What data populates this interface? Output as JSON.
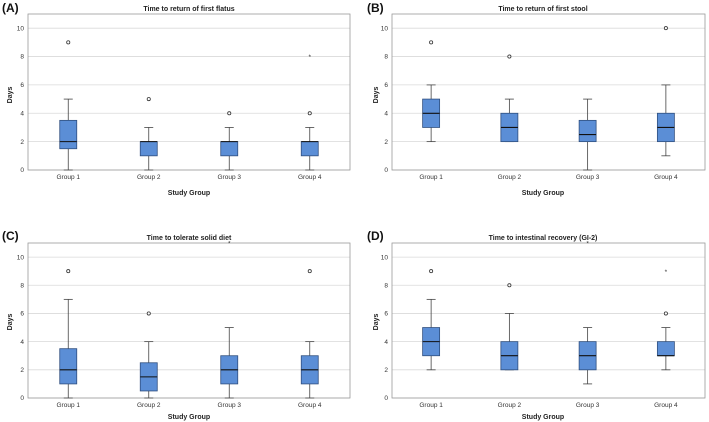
{
  "chart_data": [
    {
      "type": "boxplot",
      "panel_label": "(A)",
      "title": "Time to return of first flatus",
      "xlabel": "Study Group",
      "ylabel": "Days",
      "ylim": [
        0,
        11
      ],
      "yticks": [
        0,
        2,
        4,
        6,
        8,
        10
      ],
      "categories": [
        "Group 1",
        "Group 2",
        "Group 3",
        "Group 4"
      ],
      "box_color": "#5b8ed6",
      "series": [
        {
          "name": "Group 1",
          "min": 0,
          "q1": 1.5,
          "median": 2,
          "q3": 3.5,
          "max": 5,
          "outliers": [
            9
          ],
          "extremes": []
        },
        {
          "name": "Group 2",
          "min": 0,
          "q1": 1,
          "median": 2,
          "q3": 2,
          "max": 3,
          "outliers": [
            5
          ],
          "extremes": []
        },
        {
          "name": "Group 3",
          "min": 0,
          "q1": 1,
          "median": 2,
          "q3": 2,
          "max": 3,
          "outliers": [
            4
          ],
          "extremes": []
        },
        {
          "name": "Group 4",
          "min": 0,
          "q1": 1,
          "median": 2,
          "q3": 2,
          "max": 3,
          "outliers": [
            4
          ],
          "extremes": [
            8
          ]
        }
      ]
    },
    {
      "type": "boxplot",
      "panel_label": "(B)",
      "title": "Time to return of first stool",
      "xlabel": "Study Group",
      "ylabel": "Days",
      "ylim": [
        0,
        11
      ],
      "yticks": [
        0,
        2,
        4,
        6,
        8,
        10
      ],
      "categories": [
        "Group 1",
        "Group 2",
        "Group 3",
        "Group 4"
      ],
      "box_color": "#5b8ed6",
      "series": [
        {
          "name": "Group 1",
          "min": 2,
          "q1": 3,
          "median": 4,
          "q3": 5,
          "max": 6,
          "outliers": [
            9
          ],
          "extremes": []
        },
        {
          "name": "Group 2",
          "min": 2,
          "q1": 2,
          "median": 3,
          "q3": 4,
          "max": 5,
          "outliers": [
            8
          ],
          "extremes": []
        },
        {
          "name": "Group 3",
          "min": 0,
          "q1": 2,
          "median": 2.5,
          "q3": 3.5,
          "max": 5,
          "outliers": [],
          "extremes": []
        },
        {
          "name": "Group 4",
          "min": 1,
          "q1": 2,
          "median": 3,
          "q3": 4,
          "max": 6,
          "outliers": [
            10
          ],
          "extremes": []
        }
      ]
    },
    {
      "type": "boxplot",
      "panel_label": "(C)",
      "title": "Time to tolerate solid diet",
      "xlabel": "Study Group",
      "ylabel": "Days",
      "ylim": [
        0,
        11
      ],
      "yticks": [
        0,
        2,
        4,
        6,
        8,
        10
      ],
      "categories": [
        "Group 1",
        "Group 2",
        "Group 3",
        "Group 4"
      ],
      "box_color": "#5b8ed6",
      "series": [
        {
          "name": "Group 1",
          "min": 0,
          "q1": 1,
          "median": 2,
          "q3": 3.5,
          "max": 7,
          "outliers": [
            9
          ],
          "extremes": []
        },
        {
          "name": "Group 2",
          "min": 0,
          "q1": 0.5,
          "median": 1.5,
          "q3": 2.5,
          "max": 4,
          "outliers": [
            6
          ],
          "extremes": []
        },
        {
          "name": "Group 3",
          "min": 0,
          "q1": 1,
          "median": 2,
          "q3": 3,
          "max": 5,
          "outliers": [],
          "extremes": [
            11
          ]
        },
        {
          "name": "Group 4",
          "min": 0,
          "q1": 1,
          "median": 2,
          "q3": 3,
          "max": 4,
          "outliers": [
            9
          ],
          "extremes": []
        }
      ]
    },
    {
      "type": "boxplot",
      "panel_label": "(D)",
      "title": "Time to intestinal recovery (GI-2)",
      "xlabel": "Study Group",
      "ylabel": "Days",
      "ylim": [
        0,
        11
      ],
      "yticks": [
        0,
        2,
        4,
        6,
        8,
        10
      ],
      "categories": [
        "Group 1",
        "Group 2",
        "Group 3",
        "Group 4"
      ],
      "box_color": "#5b8ed6",
      "series": [
        {
          "name": "Group 1",
          "min": 2,
          "q1": 3,
          "median": 4,
          "q3": 5,
          "max": 7,
          "outliers": [
            9
          ],
          "extremes": []
        },
        {
          "name": "Group 2",
          "min": 2,
          "q1": 2,
          "median": 3,
          "q3": 4,
          "max": 6,
          "outliers": [
            8
          ],
          "extremes": []
        },
        {
          "name": "Group 3",
          "min": 1,
          "q1": 2,
          "median": 3,
          "q3": 4,
          "max": 5,
          "outliers": [],
          "extremes": [
            11
          ]
        },
        {
          "name": "Group 4",
          "min": 2,
          "q1": 3,
          "median": 3,
          "q3": 4,
          "max": 5,
          "outliers": [
            6
          ],
          "extremes": [
            9
          ]
        }
      ]
    }
  ]
}
